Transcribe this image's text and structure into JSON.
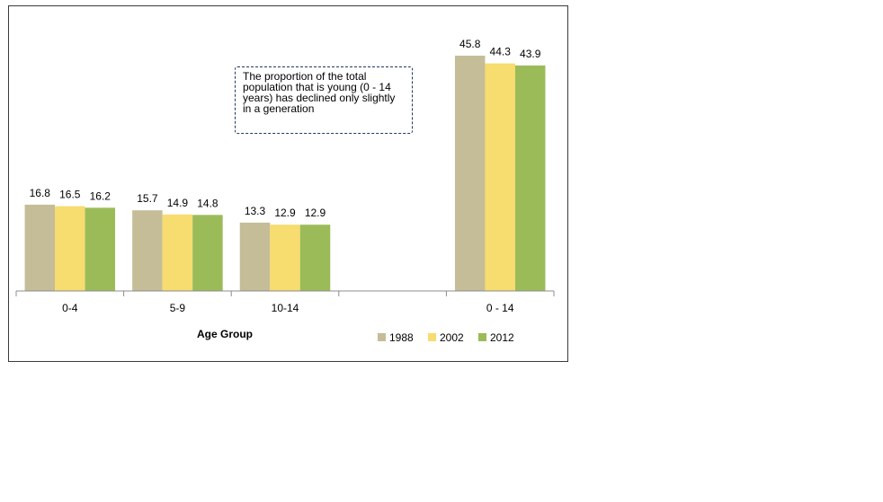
{
  "chart_data": {
    "type": "bar",
    "categories": [
      "0-4",
      "5-9",
      "10-14",
      "",
      "0 - 14"
    ],
    "series": [
      {
        "name": "1988",
        "color": "#c4bd97",
        "values": [
          16.8,
          15.7,
          13.3,
          null,
          45.8
        ]
      },
      {
        "name": "2002",
        "color": "#f7dc6f",
        "values": [
          16.5,
          14.9,
          12.9,
          null,
          44.3
        ]
      },
      {
        "name": "2012",
        "color": "#9bbb59",
        "values": [
          16.2,
          14.8,
          12.9,
          null,
          43.9
        ]
      }
    ],
    "xlabel": "Age Group",
    "ylabel": "",
    "ylim": [
      0,
      50
    ],
    "grid": false,
    "legend": "bottom-right",
    "annotation": "The proportion of the total population that is young (0 - 14 years) has declined only slightly in a generation"
  }
}
